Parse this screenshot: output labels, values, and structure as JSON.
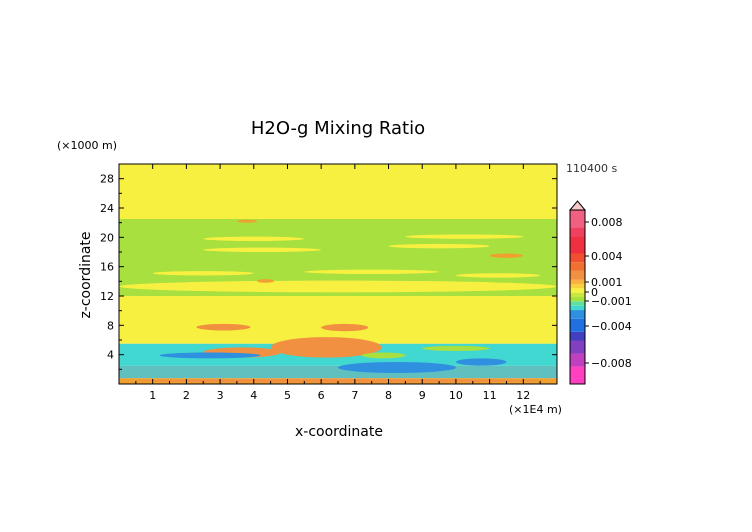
{
  "chart_data": {
    "type": "heatmap",
    "title": "H2O-g Mixing Ratio",
    "xlabel": "x-coordinate",
    "ylabel": "z-coordinate",
    "x_unit": "(×1E4 m)",
    "y_unit": "(×1000 m)",
    "time_label": "110400 s",
    "xlim": [
      0,
      13
    ],
    "ylim": [
      0,
      30
    ],
    "x_ticks": [
      1,
      2,
      3,
      4,
      5,
      6,
      7,
      8,
      9,
      10,
      11,
      12
    ],
    "y_ticks": [
      4,
      8,
      12,
      16,
      20,
      24,
      28
    ],
    "colorbar": {
      "labels": [
        "0.008",
        "0.004",
        "0.001",
        "0",
        "−0.001",
        "−0.004",
        "−0.008"
      ],
      "label_values": [
        0.008,
        0.004,
        0.001,
        0,
        -0.001,
        -0.004,
        -0.008
      ],
      "range": [
        -0.01,
        0.01
      ],
      "extend": "max"
    },
    "base_layers": [
      {
        "z": [
          0,
          0.8
        ],
        "color": "#f0a030"
      },
      {
        "z": [
          0.8,
          2.5
        ],
        "color": "#60c0c0"
      },
      {
        "z": [
          2.5,
          5.5
        ],
        "color": "#40d8d0"
      },
      {
        "z": [
          5.5,
          9
        ],
        "color": "#f8f040"
      },
      {
        "z": [
          9,
          12
        ],
        "color": "#f8f040"
      },
      {
        "z": [
          12,
          22.5
        ],
        "color": "#a8e040"
      },
      {
        "z": [
          22.5,
          30
        ],
        "color": "#f8f040"
      }
    ],
    "regions": [
      {
        "x": 1.5,
        "z": 9.5,
        "w": 3.5,
        "h": 1.2,
        "value": 0.0005,
        "color": "#f8f040"
      },
      {
        "x": 7,
        "z": 10,
        "w": 5,
        "h": 1.5,
        "value": 0.0005,
        "color": "#f8f040"
      },
      {
        "x": 0,
        "z": 12.5,
        "w": 13,
        "h": 1.6,
        "value": 0.0005,
        "color": "#f8f040"
      },
      {
        "x": 1,
        "z": 14.8,
        "w": 3,
        "h": 0.6,
        "value": 0.0005,
        "color": "#f8f040"
      },
      {
        "x": 5.5,
        "z": 15,
        "w": 4,
        "h": 0.6,
        "value": 0.0005,
        "color": "#f8f040"
      },
      {
        "x": 10,
        "z": 14.5,
        "w": 2.5,
        "h": 0.6,
        "value": 0.0005,
        "color": "#f8f040"
      },
      {
        "x": 2.5,
        "z": 18,
        "w": 3.5,
        "h": 0.6,
        "value": 0.0005,
        "color": "#f8f040"
      },
      {
        "x": 8,
        "z": 18.5,
        "w": 3,
        "h": 0.6,
        "value": 0.0005,
        "color": "#f8f040"
      },
      {
        "x": 2.5,
        "z": 19.5,
        "w": 3,
        "h": 0.6,
        "value": 0.0005,
        "color": "#f8f040"
      },
      {
        "x": 8.5,
        "z": 19.8,
        "w": 3.5,
        "h": 0.6,
        "value": 0.0005,
        "color": "#f8f040"
      },
      {
        "x": 2.3,
        "z": 7.3,
        "w": 1.6,
        "h": 0.9,
        "value": 0.003,
        "color": "#f09040"
      },
      {
        "x": 6,
        "z": 7.2,
        "w": 1.4,
        "h": 1.0,
        "value": 0.003,
        "color": "#f09040"
      },
      {
        "x": 4.5,
        "z": 3.6,
        "w": 3.3,
        "h": 2.8,
        "value": 0.003,
        "color": "#f09040"
      },
      {
        "x": 2.5,
        "z": 3.6,
        "w": 2.3,
        "h": 1.4,
        "value": 0.003,
        "color": "#f09040"
      },
      {
        "x": 0.5,
        "z": 0.2,
        "w": 12,
        "h": 0.5,
        "value": 0.003,
        "color": "#f09040"
      },
      {
        "x": 1.2,
        "z": 3.5,
        "w": 3,
        "h": 0.8,
        "value": -0.003,
        "color": "#3090e0"
      },
      {
        "x": 6.5,
        "z": 1.5,
        "w": 3.5,
        "h": 1.5,
        "value": -0.003,
        "color": "#3090e0"
      },
      {
        "x": 10,
        "z": 2.5,
        "w": 1.5,
        "h": 1.0,
        "value": -0.003,
        "color": "#3090e0"
      },
      {
        "x": 7.2,
        "z": 3.5,
        "w": 1.3,
        "h": 0.8,
        "value": -0.001,
        "color": "#a8e040"
      },
      {
        "x": 9,
        "z": 4.5,
        "w": 2,
        "h": 0.7,
        "value": -0.001,
        "color": "#a8e040"
      },
      {
        "x": 11,
        "z": 17.2,
        "w": 1,
        "h": 0.6,
        "value": 0.002,
        "color": "#f0a030"
      },
      {
        "x": 3.5,
        "z": 22.0,
        "w": 0.6,
        "h": 0.4,
        "value": 0.002,
        "color": "#f0a030"
      },
      {
        "x": 4.1,
        "z": 13.8,
        "w": 0.5,
        "h": 0.5,
        "value": 0.002,
        "color": "#f0a030"
      }
    ]
  }
}
